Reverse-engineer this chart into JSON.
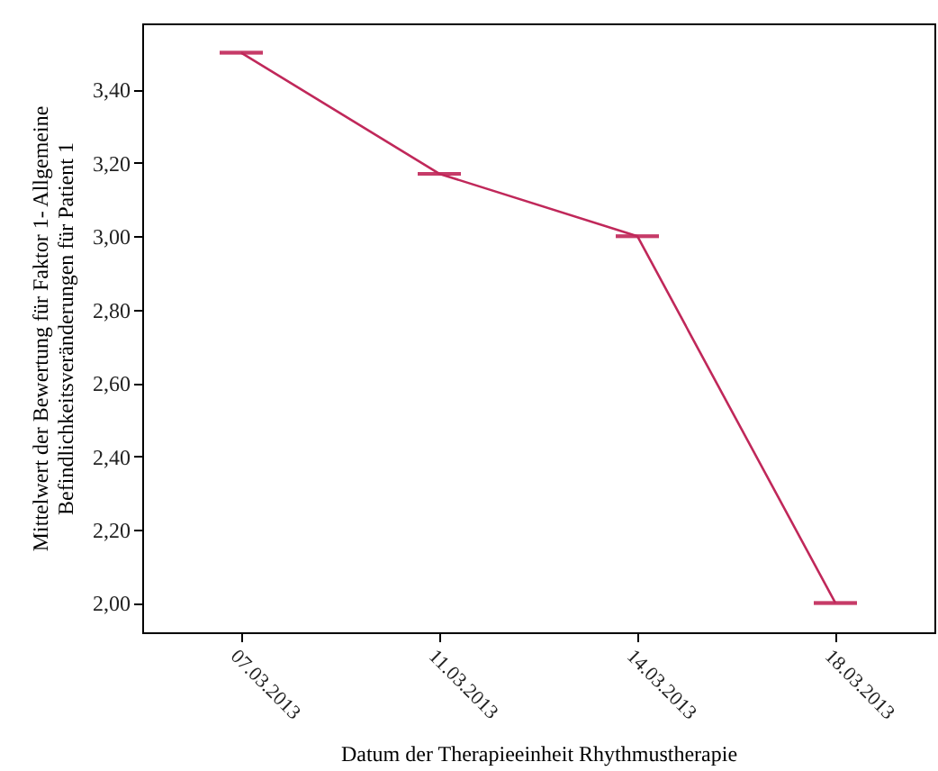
{
  "chart_data": {
    "type": "line",
    "xlabel": "Datum der Therapieeinheit Rhythmustherapie",
    "ylabel": "Mittelwert der Bewertung für Faktor 1- Allgemeine\nBefindlichkeitsveränderungen für Patient 1",
    "categories": [
      "07.03.2013",
      "11.03.2013",
      "14.03.2013",
      "18.03.2013"
    ],
    "series": [
      {
        "color": "#c0285a",
        "values": [
          3.5,
          3.17,
          3.0,
          2.0
        ],
        "errors": [
          0,
          0,
          0,
          0
        ]
      }
    ],
    "ylim": [
      1.92,
      3.58
    ],
    "yticks": [
      {
        "value": 2.0,
        "label": "2,00"
      },
      {
        "value": 2.2,
        "label": "2,20"
      },
      {
        "value": 2.4,
        "label": "2,40"
      },
      {
        "value": 2.6,
        "label": "2,60"
      },
      {
        "value": 2.8,
        "label": "2,80"
      },
      {
        "value": 3.0,
        "label": "3,00"
      },
      {
        "value": 3.2,
        "label": "3,20"
      },
      {
        "value": 3.4,
        "label": "3,40"
      }
    ],
    "marker": "none",
    "line_style": "solid"
  }
}
